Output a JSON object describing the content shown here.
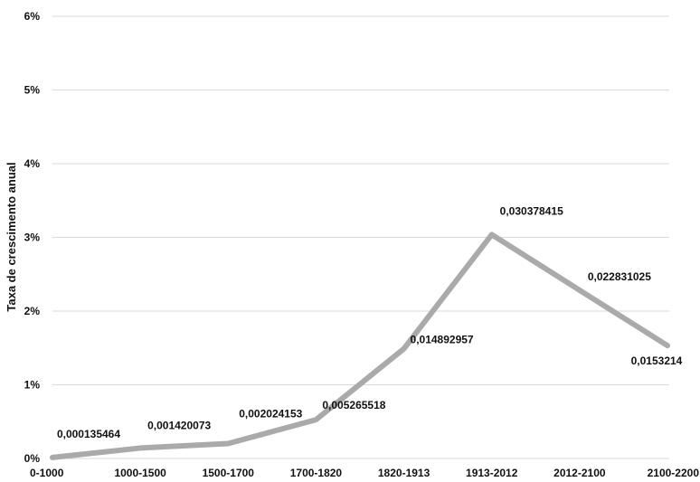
{
  "chart_data": {
    "type": "line",
    "categories": [
      "0-1000",
      "1000-1500",
      "1500-1700",
      "1700-1820",
      "1820-1913",
      "1913-2012",
      "2012-2100",
      "2100-2200"
    ],
    "series": [
      {
        "values": [
          0.000135464,
          0.001420073,
          0.002024153,
          0.005265518,
          0.014892957,
          0.030378415,
          0.022831025,
          0.0153214
        ],
        "data_labels": [
          "0,000135464",
          "0,001420073",
          "0,002024153",
          "0,005265518",
          "0,014892957",
          "0,030378415",
          "0,022831025",
          "0,0153214"
        ],
        "color": "#aaaaaa"
      }
    ],
    "ylabel": "Taxa de crescimento anual",
    "ylim": [
      0,
      0.06
    ],
    "yticks": [
      0,
      0.01,
      0.02,
      0.03,
      0.04,
      0.05,
      0.06
    ],
    "ytick_labels": [
      "0%",
      "1%",
      "2%",
      "3%",
      "4%",
      "5%",
      "6%"
    ],
    "grid": true,
    "gridline_color": "#d9d9d9",
    "legend": false
  }
}
